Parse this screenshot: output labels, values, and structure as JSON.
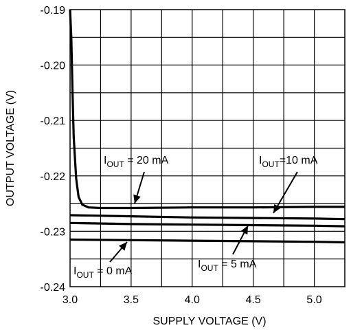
{
  "chart_data": {
    "type": "line",
    "title": "",
    "xlabel": "SUPPLY VOLTAGE (V)",
    "ylabel": "OUTPUT VOLTAGE (V)",
    "xlim": [
      3.0,
      5.25
    ],
    "ylim": [
      -0.24,
      -0.19
    ],
    "x_ticks": [
      3.0,
      3.5,
      4.0,
      4.5,
      5.0
    ],
    "x_tick_labels": [
      "3.0",
      "3.5",
      "4.0",
      "4.5",
      "5.0"
    ],
    "y_ticks": [
      -0.19,
      -0.2,
      -0.21,
      -0.22,
      -0.23,
      -0.24
    ],
    "y_tick_labels": [
      "-0.19",
      "-0.20",
      "-0.21",
      "-0.22",
      "-0.23",
      "-0.24"
    ],
    "grid": true,
    "series": [
      {
        "name": "I_OUT = 20 mA",
        "x": [
          3.0,
          3.01,
          3.02,
          3.03,
          3.05,
          3.07,
          3.1,
          3.15,
          3.25,
          3.5,
          4.0,
          4.5,
          5.0,
          5.25
        ],
        "y": [
          -0.19,
          -0.195,
          -0.205,
          -0.213,
          -0.2205,
          -0.2238,
          -0.2252,
          -0.2257,
          -0.2258,
          -0.2258,
          -0.2257,
          -0.2257,
          -0.2256,
          -0.2256
        ]
      },
      {
        "name": "I_OUT=10 mA",
        "x": [
          3.0,
          3.5,
          4.0,
          4.5,
          5.0,
          5.25
        ],
        "y": [
          -0.2271,
          -0.2273,
          -0.2275,
          -0.2276,
          -0.2277,
          -0.2278
        ]
      },
      {
        "name": "I_OUT = 5 mA",
        "x": [
          3.0,
          3.5,
          4.0,
          4.5,
          5.0,
          5.25
        ],
        "y": [
          -0.2285,
          -0.2287,
          -0.2288,
          -0.2289,
          -0.229,
          -0.2291
        ]
      },
      {
        "name": "I_OUT = 0 mA",
        "x": [
          3.0,
          3.5,
          4.0,
          4.5,
          5.0,
          5.25
        ],
        "y": [
          -0.2315,
          -0.2316,
          -0.2317,
          -0.2318,
          -0.2319,
          -0.232
        ]
      }
    ],
    "annotations": [
      {
        "prefix": "I",
        "sub": "OUT",
        "suffix": " = 20 mA"
      },
      {
        "prefix": "I",
        "sub": "OUT",
        "suffix": "=10 mA"
      },
      {
        "prefix": "I",
        "sub": "OUT",
        "suffix": " = 5 mA"
      },
      {
        "prefix": "I",
        "sub": "OUT",
        "suffix": " = 0 mA"
      }
    ],
    "line_color": "#000000",
    "grid_color": "#000000"
  }
}
